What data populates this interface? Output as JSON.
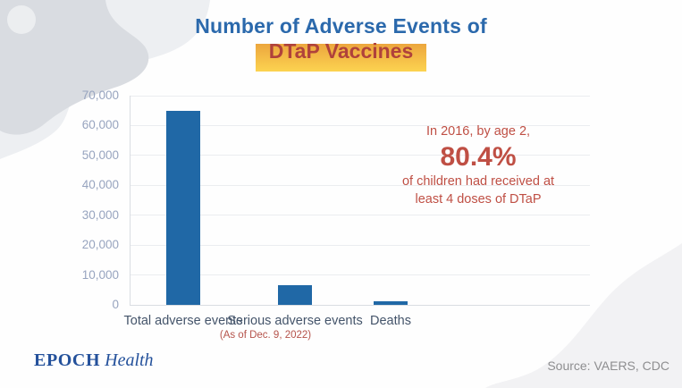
{
  "header": {
    "title_line1": "Number of Adverse Events of",
    "title_line2": "DTaP Vaccines"
  },
  "annotation": {
    "line1": "In 2016, by age 2,",
    "value": "80.4%",
    "line2": "of children had received at",
    "line3": "least 4 doses of DTaP"
  },
  "footer": {
    "brand_epoch": "EPOCH",
    "brand_health": "Health",
    "source": "Source: VAERS, CDC"
  },
  "colors": {
    "title_blue": "#2b69ac",
    "title_red": "#b0423b",
    "highlight_top": "#eca63e",
    "highlight_bottom": "#fcd350",
    "bar_blue": "#2068a6",
    "annotation_red": "#bf4f44",
    "axis_label": "#97a4bf",
    "category_label": "#44546a",
    "asof_red": "#b5534b",
    "source_gray": "#8e8e90",
    "brand_blue": "#24519b"
  },
  "chart_data": {
    "type": "bar",
    "title": "Number of Adverse Events of DTaP Vaccines",
    "categories": [
      "Total adverse events",
      "Serious adverse events",
      "Deaths"
    ],
    "values": [
      65000,
      6500,
      1200
    ],
    "ylim": [
      0,
      70000
    ],
    "ytick_step": 10000,
    "ytick_labels": [
      "0",
      "10,000",
      "20,000",
      "30,000",
      "40,000",
      "50,000",
      "60,000",
      "70,000"
    ],
    "grid": true,
    "legend": false,
    "note": "(As of Dec. 9, 2022)",
    "annotation_text": "In 2016, by age 2, 80.4% of children had received at least 4 doses of DTaP",
    "source": "Source: VAERS, CDC"
  }
}
